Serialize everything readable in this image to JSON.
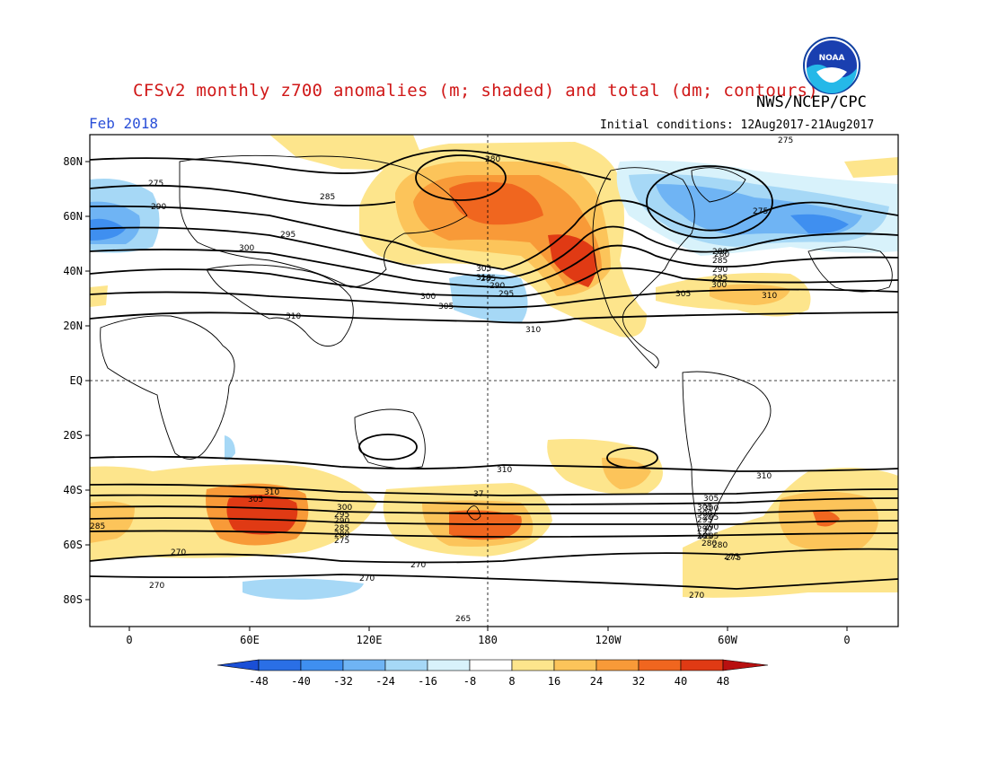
{
  "header": {
    "title": "CFSv2 monthly z700 anomalies (m; shaded) and total (dm; contours)",
    "agency": "NWS/NCEP/CPC",
    "period": "Feb 2018",
    "initial_conditions": "Initial conditions: 12Aug2017-21Aug2017",
    "logo_text": "NOAA"
  },
  "axes": {
    "lat_labels": [
      "80N",
      "60N",
      "40N",
      "20N",
      "EQ",
      "20S",
      "40S",
      "60S",
      "80S"
    ],
    "lon_labels": [
      "0",
      "60E",
      "120E",
      "180",
      "120W",
      "60W",
      "0"
    ]
  },
  "colorbar": {
    "labels": [
      "-48",
      "-40",
      "-32",
      "-24",
      "-16",
      "-8",
      "8",
      "16",
      "24",
      "32",
      "40",
      "48"
    ],
    "colors": [
      "#1a4fd6",
      "#2a6fe6",
      "#3f8ff0",
      "#6fb4f4",
      "#a6d8f6",
      "#d8f2fb",
      "#ffffff",
      "#fde58c",
      "#fcc45a",
      "#f89a38",
      "#f0661f",
      "#e03a14",
      "#b81010"
    ]
  },
  "contour_labels": {
    "north": [
      "280",
      "275",
      "285",
      "290",
      "295",
      "300",
      "305",
      "310",
      "310",
      "300",
      "305",
      "280",
      "285",
      "290",
      "295",
      "310",
      "275",
      "280",
      "285",
      "290",
      "295",
      "300",
      "305",
      "310",
      "275"
    ],
    "south": [
      "310",
      "305",
      "300",
      "295",
      "290",
      "285",
      "280",
      "275",
      "270",
      "270",
      "270",
      "265",
      "310",
      "305",
      "300",
      "295",
      "290",
      "285",
      "280",
      "275",
      "270",
      "310",
      "305",
      "300",
      "295",
      "290",
      "285",
      "280",
      "275",
      "270",
      "285",
      "37"
    ]
  }
}
